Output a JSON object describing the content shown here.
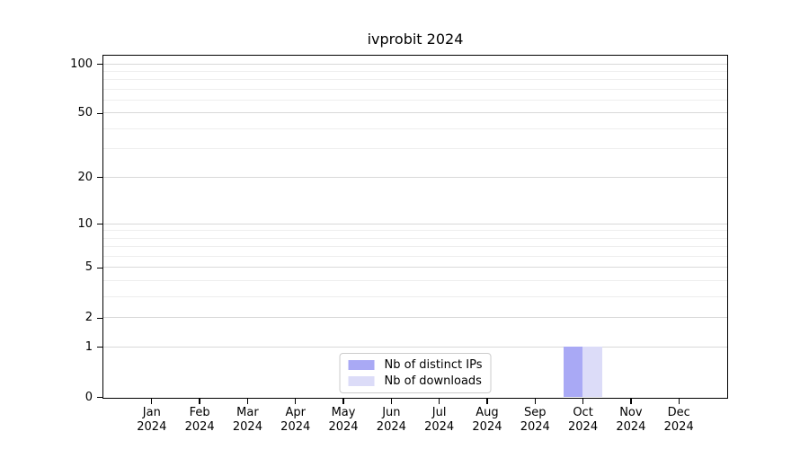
{
  "chart_data": {
    "type": "bar",
    "title": "ivprobit 2024",
    "categories": [
      "Jan 2024",
      "Feb 2024",
      "Mar 2024",
      "Apr 2024",
      "May 2024",
      "Jun 2024",
      "Jul 2024",
      "Aug 2024",
      "Sep 2024",
      "Oct 2024",
      "Nov 2024",
      "Dec 2024"
    ],
    "series": [
      {
        "name": "Nb of distinct IPs",
        "color": "#a9a9f5",
        "values": [
          0,
          0,
          0,
          0,
          0,
          0,
          0,
          0,
          0,
          1,
          0,
          0
        ]
      },
      {
        "name": "Nb of downloads",
        "color": "#dcdcf8",
        "values": [
          0,
          0,
          0,
          0,
          0,
          0,
          0,
          0,
          0,
          1,
          0,
          0
        ]
      }
    ],
    "y_axis": {
      "scale": "log1p",
      "tick_values": [
        0,
        1,
        2,
        5,
        10,
        20,
        50,
        100
      ],
      "minor_gridline_values": [
        3,
        4,
        6,
        7,
        8,
        9,
        30,
        40,
        60,
        70,
        80,
        90
      ],
      "top_value": 112
    },
    "x_axis": {
      "tick_count": 12
    },
    "legend": {
      "position": "lower center"
    },
    "style": {
      "major_grid_color": "#d9d9d9",
      "minor_grid_color": "#eeeeee",
      "spine_color": "#000000",
      "background_color": "#ffffff",
      "text_color": "#000000"
    }
  }
}
